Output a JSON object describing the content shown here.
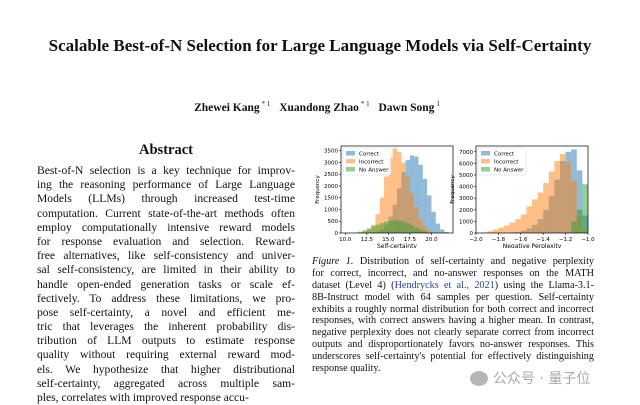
{
  "title": "Scalable Best-of-N Selection for Large Language Models via Self-Certainty",
  "authors": [
    {
      "name": "Zhewei Kang",
      "mark": "* 1"
    },
    {
      "name": "Xuandong Zhao",
      "mark": "* 1"
    },
    {
      "name": "Dawn Song",
      "mark": "1"
    }
  ],
  "abstract": {
    "heading": "Abstract",
    "lines": [
      "Best-of-N selection is a key technique for improv-",
      "ing the reasoning performance of Large Language",
      "Models (LLMs) through increased test-time",
      "computation. Current state-of-the-art methods often",
      "employ computationally intensive reward models",
      "for response evaluation and selection. Reward-",
      "free alternatives, like self-consistency and univer-",
      "sal self-consistency, are limited in their ability to",
      "handle open-ended generation tasks or scale ef-",
      "fectively. To address these limitations, we pro-",
      "pose self-certainty, a novel and efficient me-",
      "tric that leverages the inherent probability dis-",
      "tribution of LLM outputs to estimate response",
      "quality without requiring external reward mod-",
      "els. We hypothesize that higher distributional",
      "self-certainty, aggregated across multiple sam-",
      "ples, correlates with improved response accu-"
    ]
  },
  "caption": {
    "label": "Figure 1.",
    "lines": [
      " Distribution of self-certainty and negative perplexity",
      "for correct, incorrect, and no-answer responses on the MATH",
      "dataset (Level 4) (Hendrycks et al., 2021) using the Llama-3.1-",
      "8B-Instruct model with 64 samples per question. Self-certainty",
      "exhibits a roughly normal distribution for both correct and incorrect",
      "responses, with correct answers having a higher mean. In contrast,",
      "negative perplexity does not clearly separate correct from incorrect",
      "outputs and disproportionately favors no-answer responses. This",
      "underscores self-certainty's potential for effectively distinguishing",
      "response quality."
    ]
  },
  "watermark": "公众号 · 量子位",
  "chart_data": [
    {
      "type": "histogram",
      "xlabel": "Self-certainty",
      "ylabel": "Frequency",
      "xlim": [
        9.5,
        22.5
      ],
      "ylim": [
        0,
        3700
      ],
      "xticks": [
        10.0,
        12.5,
        15.0,
        17.5,
        20.0
      ],
      "xtick_labels": [
        "10.0",
        "12.5",
        "15.0",
        "17.5",
        "20.0"
      ],
      "yticks": [
        0,
        500,
        1000,
        1500,
        2000,
        2500,
        3000,
        3500
      ],
      "legend": "top-left",
      "bin_start": 11.0,
      "bin_width": 0.5,
      "series": [
        {
          "name": "Correct",
          "color": "#1f77b4",
          "values": [
            0,
            0,
            0,
            5,
            20,
            60,
            150,
            350,
            700,
            1200,
            1900,
            2600,
            3100,
            3300,
            3250,
            2900,
            2300,
            1600,
            900,
            400,
            150,
            40,
            0
          ]
        },
        {
          "name": "Incorrect",
          "color": "#ff7f0e",
          "values": [
            0,
            20,
            60,
            150,
            350,
            800,
            1500,
            2400,
            3200,
            3600,
            3450,
            3000,
            2400,
            1700,
            1100,
            600,
            280,
            100,
            30,
            5,
            0,
            0,
            0
          ]
        },
        {
          "name": "No Answer",
          "color": "#2ca02c",
          "values": [
            20,
            60,
            120,
            200,
            280,
            350,
            420,
            480,
            520,
            540,
            530,
            490,
            420,
            330,
            230,
            140,
            70,
            25,
            5,
            0,
            0,
            0,
            0
          ]
        }
      ]
    },
    {
      "type": "histogram",
      "xlabel": "Negative Perplexity",
      "ylabel": "Frequency",
      "xlim": [
        -2.0,
        -1.0
      ],
      "ylim": [
        0,
        7500
      ],
      "xticks": [
        -2.0,
        -1.8,
        -1.6,
        -1.4,
        -1.2,
        -1.0
      ],
      "xtick_labels": [
        "−2.0",
        "−1.8",
        "−1.6",
        "−1.4",
        "−1.2",
        "−1.0"
      ],
      "yticks": [
        0,
        1000,
        2000,
        3000,
        4000,
        5000,
        6000,
        7000
      ],
      "legend": "top-left",
      "bin_start": -2.0,
      "bin_width": 0.05,
      "series": [
        {
          "name": "Correct",
          "color": "#1f77b4",
          "values": [
            0,
            0,
            0,
            0,
            0,
            20,
            50,
            100,
            200,
            400,
            700,
            1200,
            2000,
            3200,
            4600,
            6200,
            7000,
            7200,
            5400,
            1500
          ]
        },
        {
          "name": "Incorrect",
          "color": "#ff7f0e",
          "values": [
            0,
            50,
            150,
            300,
            450,
            650,
            900,
            1200,
            1600,
            2300,
            2900,
            3500,
            4300,
            5300,
            6200,
            6800,
            6100,
            4500,
            1500,
            300
          ]
        },
        {
          "name": "No Answer",
          "color": "#2ca02c",
          "values": [
            0,
            0,
            0,
            0,
            0,
            0,
            0,
            0,
            0,
            0,
            0,
            0,
            0,
            0,
            0,
            0,
            0,
            1000,
            2000,
            4200
          ]
        }
      ]
    }
  ]
}
